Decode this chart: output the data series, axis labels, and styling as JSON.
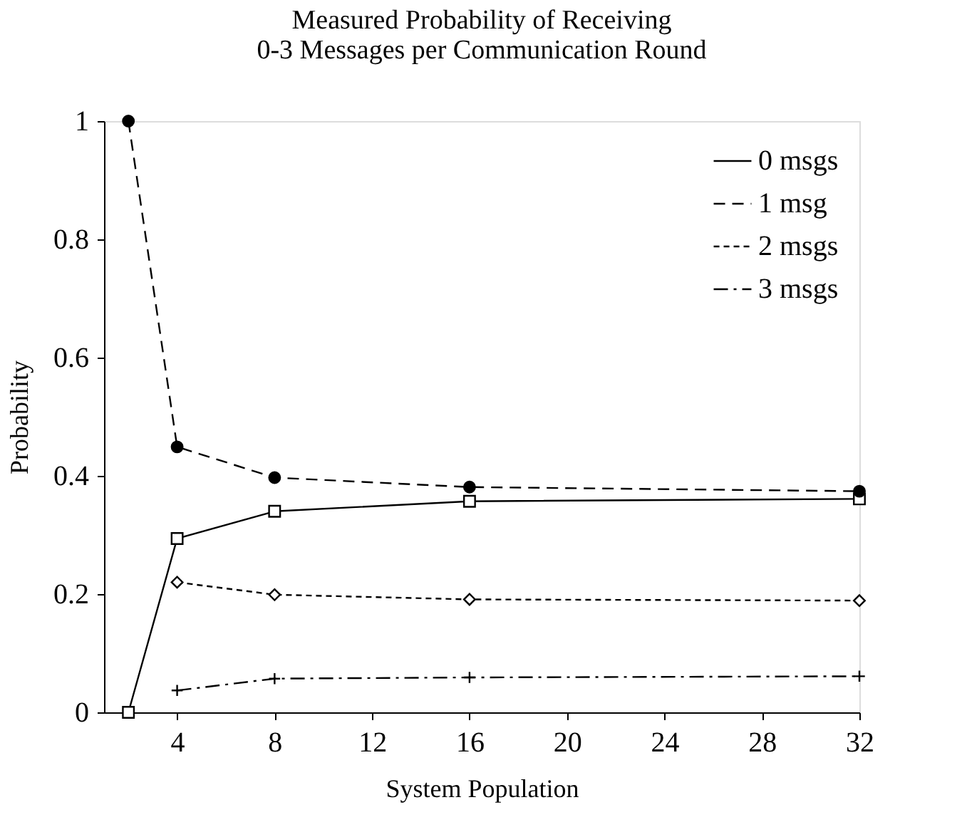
{
  "chart_data": {
    "type": "line",
    "title": "Measured Probability of Receiving\n0-3 Messages per Communication Round",
    "xlabel": "System Population",
    "ylabel": "Probability",
    "x": [
      2,
      4,
      8,
      16,
      32
    ],
    "series": [
      {
        "name": "0 msgs",
        "color": "#000000",
        "marker": "square",
        "line_style": "solid",
        "values": [
          0,
          0.294,
          0.34,
          0.357,
          0.361
        ]
      },
      {
        "name": "1 msg",
        "color": "#000000",
        "marker": "circle",
        "line_style": "dashed",
        "values": [
          1.0,
          0.449,
          0.397,
          0.381,
          0.374
        ]
      },
      {
        "name": "2 msgs",
        "color": "#000000",
        "marker": "diamond",
        "line_style": "dotted",
        "values": [
          null,
          0.22,
          0.199,
          0.191,
          0.189
        ]
      },
      {
        "name": "3 msgs",
        "color": "#000000",
        "marker": "cross",
        "line_style": "dashdot",
        "values": [
          null,
          0.037,
          0.057,
          0.059,
          0.061
        ]
      }
    ],
    "xlim": [
      1,
      32
    ],
    "xticks": [
      4,
      8,
      12,
      16,
      20,
      24,
      28,
      32
    ],
    "ylim": [
      0,
      1
    ],
    "yticks": [
      {
        "value": 0,
        "label": "0"
      },
      0.2,
      0.4,
      0.6,
      0.8,
      {
        "value": 1,
        "label": "1"
      }
    ],
    "grid": false,
    "legend": "top right"
  }
}
